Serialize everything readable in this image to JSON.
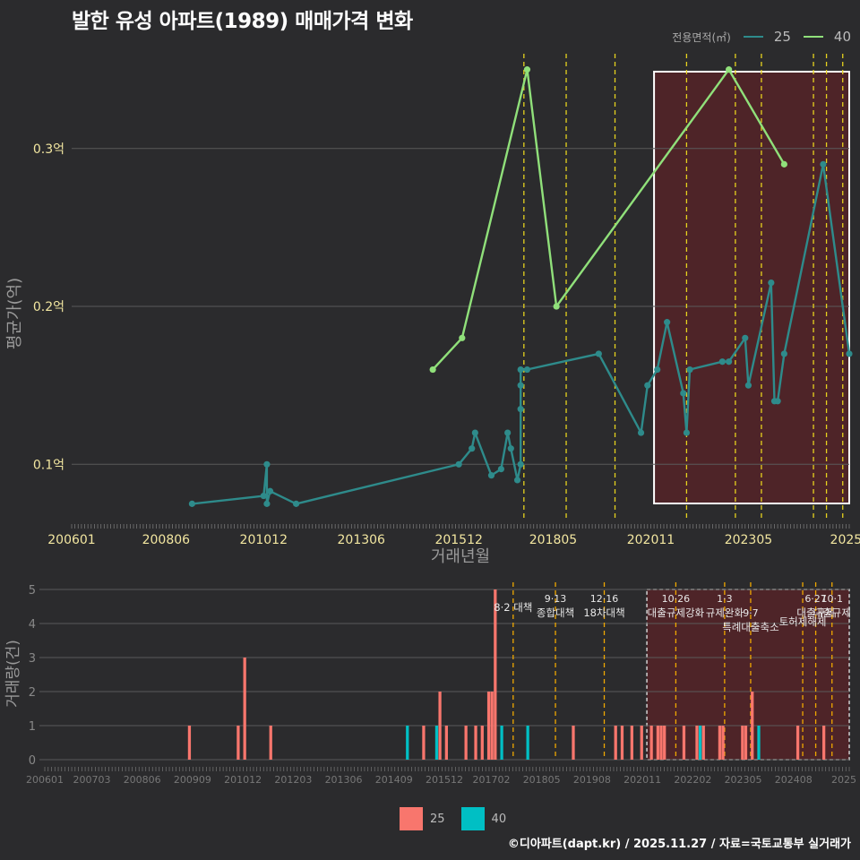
{
  "title": "발한 유성 아파트(1989) 매매가격 변화",
  "footer": "©디아파트(dapt.kr) / 2025.11.27 / 자료=국토교통부 실거래가",
  "colors": {
    "bg": "#2b2b2d",
    "series25": "#2e8b8b",
    "series40": "#90e07a",
    "bar25": "#f8766d",
    "bar40": "#00bfc4",
    "vline": "#e6d21e",
    "highlight": "#6b1f24",
    "grid": "#5a5a5a"
  },
  "chart_data": [
    {
      "type": "line",
      "name": "price",
      "title": "발한 유성 아파트(1989) 매매가격 변화",
      "xlabel": "거래년월",
      "ylabel": "평균가(억)",
      "legend_title": "전용면적(㎡)",
      "x_range": [
        "2006-01",
        "2025-12"
      ],
      "ylim": [
        0.065,
        0.36
      ],
      "y_ticks": [
        0.1,
        0.2,
        0.3
      ],
      "y_tick_labels": [
        "0.1억",
        "0.2억",
        "0.3억"
      ],
      "x_ticks": [
        "2006-01",
        "2008-06",
        "2010-12",
        "2013-06",
        "2015-12",
        "2018-05",
        "2020-11",
        "2023-05",
        "2025-11"
      ],
      "x_tick_labels": [
        "200601",
        "200806",
        "201012",
        "201306",
        "201512",
        "201805",
        "202011",
        "202305",
        "2025"
      ],
      "highlight_range": [
        "2020-12",
        "2025-12"
      ],
      "policy_lines": [
        "2017-08",
        "2018-09",
        "2019-12",
        "2021-10",
        "2023-01",
        "2023-09",
        "2025-01",
        "2025-05",
        "2025-10"
      ],
      "series": [
        {
          "name": "25",
          "points": [
            [
              "2009-02",
              0.075
            ],
            [
              "2010-12",
              0.08
            ],
            [
              "2011-01",
              0.1
            ],
            [
              "2011-01",
              0.075
            ],
            [
              "2011-02",
              0.083
            ],
            [
              "2011-10",
              0.075
            ],
            [
              "2015-12",
              0.1
            ],
            [
              "2016-04",
              0.11
            ],
            [
              "2016-05",
              0.12
            ],
            [
              "2016-10",
              0.093
            ],
            [
              "2017-01",
              0.097
            ],
            [
              "2017-03",
              0.12
            ],
            [
              "2017-04",
              0.11
            ],
            [
              "2017-06",
              0.09
            ],
            [
              "2017-07",
              0.1
            ],
            [
              "2017-07",
              0.135
            ],
            [
              "2017-07",
              0.15
            ],
            [
              "2017-07",
              0.16
            ],
            [
              "2017-09",
              0.16
            ],
            [
              "2019-07",
              0.17
            ],
            [
              "2020-08",
              0.12
            ],
            [
              "2020-10",
              0.15
            ],
            [
              "2021-01",
              0.16
            ],
            [
              "2021-04",
              0.19
            ],
            [
              "2021-09",
              0.145
            ],
            [
              "2021-10",
              0.12
            ],
            [
              "2021-11",
              0.16
            ],
            [
              "2022-09",
              0.165
            ],
            [
              "2022-11",
              0.165
            ],
            [
              "2023-04",
              0.18
            ],
            [
              "2023-05",
              0.15
            ],
            [
              "2023-12",
              0.215
            ],
            [
              "2024-01",
              0.14
            ],
            [
              "2024-02",
              0.14
            ],
            [
              "2024-04",
              0.17
            ],
            [
              "2025-04",
              0.29
            ],
            [
              "2025-12",
              0.17
            ]
          ]
        },
        {
          "name": "40",
          "points": [
            [
              "2015-04",
              0.16
            ],
            [
              "2016-01",
              0.18
            ],
            [
              "2017-09",
              0.35
            ],
            [
              "2018-06",
              0.2
            ],
            [
              "2022-11",
              0.35
            ],
            [
              "2024-04",
              0.29
            ]
          ]
        }
      ]
    },
    {
      "type": "bar",
      "name": "volume",
      "ylabel": "거래량(건)",
      "ylim": [
        0,
        5
      ],
      "y_ticks": [
        0,
        1,
        2,
        3,
        4,
        5
      ],
      "x_tick_labels": [
        "200601",
        "200703",
        "200806",
        "200909",
        "201012",
        "201203",
        "201306",
        "201409",
        "201512",
        "201702",
        "201805",
        "201908",
        "202011",
        "202202",
        "202305",
        "202408",
        "2025"
      ],
      "x_ticks": [
        "2006-01",
        "2007-03",
        "2008-06",
        "2009-09",
        "2010-12",
        "2012-03",
        "2013-06",
        "2014-09",
        "2015-12",
        "2017-02",
        "2018-05",
        "2019-08",
        "2020-11",
        "2022-02",
        "2023-05",
        "2024-08",
        "2025-11"
      ],
      "legend": [
        "25",
        "40"
      ],
      "policy_labels": [
        {
          "date": "2017-08",
          "label": "8·2 대책"
        },
        {
          "date": "2018-09",
          "label": "9·13\n종합대책"
        },
        {
          "date": "2019-12",
          "label": "12·16\n18차대책"
        },
        {
          "date": "2021-10",
          "label": "10·26\n대출규제강화"
        },
        {
          "date": "2023-01",
          "label": "1·3\n규제완화"
        },
        {
          "date": "2023-09",
          "label": "9·7\n특례대출축소"
        },
        {
          "date": "2025-01",
          "label": "토허제해제"
        },
        {
          "date": "2025-05",
          "label": "6·27\n대출규제"
        },
        {
          "date": "2025-10",
          "label": "10·1\n대출규제"
        }
      ],
      "bars": [
        {
          "date": "2009-09",
          "series": "25",
          "value": 1
        },
        {
          "date": "2010-12",
          "series": "25",
          "value": 1
        },
        {
          "date": "2011-02",
          "series": "25",
          "value": 3
        },
        {
          "date": "2011-10",
          "series": "25",
          "value": 1
        },
        {
          "date": "2015-04",
          "series": "40",
          "value": 1
        },
        {
          "date": "2015-09",
          "series": "25",
          "value": 1
        },
        {
          "date": "2016-01",
          "series": "40",
          "value": 1
        },
        {
          "date": "2016-02",
          "series": "25",
          "value": 2
        },
        {
          "date": "2016-04",
          "series": "25",
          "value": 1
        },
        {
          "date": "2016-10",
          "series": "25",
          "value": 1
        },
        {
          "date": "2017-01",
          "series": "25",
          "value": 1
        },
        {
          "date": "2017-03",
          "series": "25",
          "value": 1
        },
        {
          "date": "2017-05",
          "series": "25",
          "value": 2
        },
        {
          "date": "2017-06",
          "series": "25",
          "value": 2
        },
        {
          "date": "2017-07",
          "series": "25",
          "value": 5
        },
        {
          "date": "2017-09",
          "series": "40",
          "value": 1
        },
        {
          "date": "2018-05",
          "series": "40",
          "value": 1
        },
        {
          "date": "2019-07",
          "series": "25",
          "value": 1
        },
        {
          "date": "2020-08",
          "series": "25",
          "value": 1
        },
        {
          "date": "2020-10",
          "series": "25",
          "value": 1
        },
        {
          "date": "2021-01",
          "series": "25",
          "value": 1
        },
        {
          "date": "2021-04",
          "series": "25",
          "value": 1
        },
        {
          "date": "2021-07",
          "series": "25",
          "value": 1
        },
        {
          "date": "2021-09",
          "series": "25",
          "value": 1
        },
        {
          "date": "2021-10",
          "series": "25",
          "value": 1
        },
        {
          "date": "2021-11",
          "series": "25",
          "value": 1
        },
        {
          "date": "2022-05",
          "series": "25",
          "value": 1
        },
        {
          "date": "2022-09",
          "series": "25",
          "value": 1
        },
        {
          "date": "2022-10",
          "series": "40",
          "value": 1
        },
        {
          "date": "2022-11",
          "series": "25",
          "value": 1
        },
        {
          "date": "2023-04",
          "series": "25",
          "value": 1
        },
        {
          "date": "2023-05",
          "series": "25",
          "value": 1
        },
        {
          "date": "2023-11",
          "series": "25",
          "value": 1
        },
        {
          "date": "2023-12",
          "series": "25",
          "value": 1
        },
        {
          "date": "2024-02",
          "series": "25",
          "value": 2
        },
        {
          "date": "2024-04",
          "series": "40",
          "value": 1
        },
        {
          "date": "2025-04",
          "series": "25",
          "value": 1
        },
        {
          "date": "2025-12",
          "series": "25",
          "value": 1
        }
      ]
    }
  ]
}
